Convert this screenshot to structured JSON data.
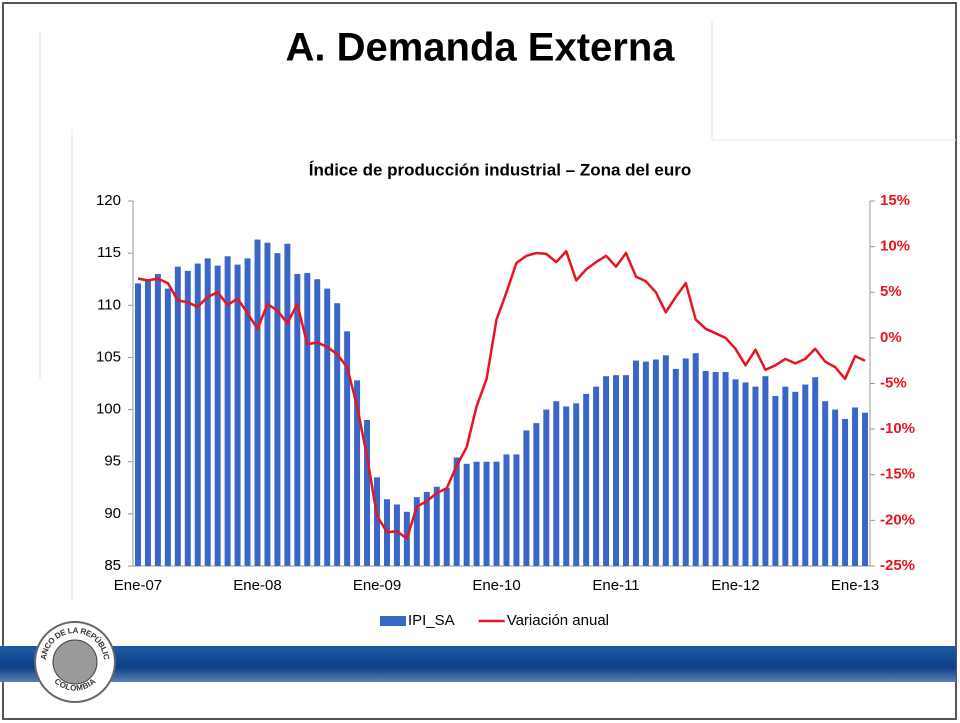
{
  "slide_title": "A. Demanda Externa",
  "logo": {
    "top": "BANCO DE LA REPÚBLICA",
    "bottom": "COLOMBIA"
  },
  "chart_data": {
    "type": "bar",
    "title": "Índice de producción industrial – Zona del euro",
    "categories": [
      "Ene-07",
      null,
      null,
      null,
      null,
      null,
      null,
      null,
      null,
      null,
      null,
      null,
      "Ene-08",
      null,
      null,
      null,
      null,
      null,
      null,
      null,
      null,
      null,
      null,
      null,
      "Ene-09",
      null,
      null,
      null,
      null,
      null,
      null,
      null,
      null,
      null,
      null,
      null,
      "Ene-10",
      null,
      null,
      null,
      null,
      null,
      null,
      null,
      null,
      null,
      null,
      null,
      "Ene-11",
      null,
      null,
      null,
      null,
      null,
      null,
      null,
      null,
      null,
      null,
      null,
      "Ene-12",
      null,
      null,
      null,
      null,
      null,
      null,
      null,
      null,
      null,
      null,
      null,
      "Ene-13",
      null
    ],
    "series": [
      {
        "name": "IPI_SA",
        "type": "bar",
        "color": "#3a66c8",
        "values": [
          112.1,
          112.5,
          113.0,
          111.6,
          113.7,
          113.3,
          114.0,
          114.5,
          113.8,
          114.7,
          113.9,
          114.5,
          116.3,
          116.0,
          115.0,
          115.9,
          113.0,
          113.1,
          112.5,
          111.6,
          110.2,
          107.5,
          102.8,
          99.0,
          93.5,
          91.4,
          90.9,
          90.2,
          91.6,
          92.1,
          92.6,
          92.5,
          95.4,
          94.8,
          95.0,
          95.0,
          95.0,
          95.7,
          95.7,
          98.0,
          98.7,
          100.0,
          100.8,
          100.3,
          100.6,
          101.5,
          102.2,
          103.2,
          103.3,
          103.3,
          104.7,
          104.6,
          104.8,
          105.2,
          103.9,
          104.9,
          105.4,
          103.7,
          103.6,
          103.6,
          102.9,
          102.6,
          102.2,
          103.2,
          101.3,
          102.2,
          101.7,
          102.4,
          103.1,
          100.8,
          100.0,
          99.1,
          100.2,
          99.7
        ]
      },
      {
        "name": "Variación anual",
        "type": "line",
        "axis": "y2",
        "color": "#e8141e",
        "values": [
          6.5,
          6.3,
          6.5,
          6.0,
          4.1,
          3.9,
          3.4,
          4.5,
          5.0,
          3.6,
          4.3,
          2.7,
          1.0,
          3.7,
          3.0,
          1.6,
          3.7,
          -0.7,
          -0.5,
          -1.0,
          -1.8,
          -3.2,
          -7.5,
          -13.0,
          -19.5,
          -21.3,
          -21.2,
          -22.0,
          -18.5,
          -17.9,
          -17.0,
          -16.5,
          -14.0,
          -12.0,
          -7.5,
          -4.5,
          2.0,
          5.0,
          8.2,
          9.0,
          9.3,
          9.2,
          8.3,
          9.5,
          6.3,
          7.5,
          8.3,
          9.0,
          7.8,
          9.3,
          6.7,
          6.2,
          5.0,
          2.8,
          4.5,
          6.0,
          2.0,
          1.0,
          0.5,
          0.0,
          -1.2,
          -3.0,
          -1.3,
          -3.5,
          -3.0,
          -2.3,
          -2.8,
          -2.3,
          -1.2,
          -2.6,
          -3.2,
          -4.5,
          -2.0,
          -2.5
        ]
      }
    ],
    "ylim": [
      85,
      120
    ],
    "yticks": [
      120,
      115,
      110,
      105,
      100,
      95,
      90,
      85
    ],
    "y2lim": [
      -25,
      15
    ],
    "y2ticks": [
      {
        "value": 15,
        "label": "15%"
      },
      {
        "value": 10,
        "label": "10%"
      },
      {
        "value": 5,
        "label": "5%"
      },
      {
        "value": 0,
        "label": "0%"
      },
      {
        "value": -5,
        "label": "-5%"
      },
      {
        "value": -10,
        "label": "-10%"
      },
      {
        "value": -15,
        "label": "-15%"
      },
      {
        "value": -20,
        "label": "-20%"
      },
      {
        "value": -25,
        "label": "-25%"
      }
    ],
    "y2color": "#e8141e",
    "legend": "bottom",
    "grid": false
  }
}
